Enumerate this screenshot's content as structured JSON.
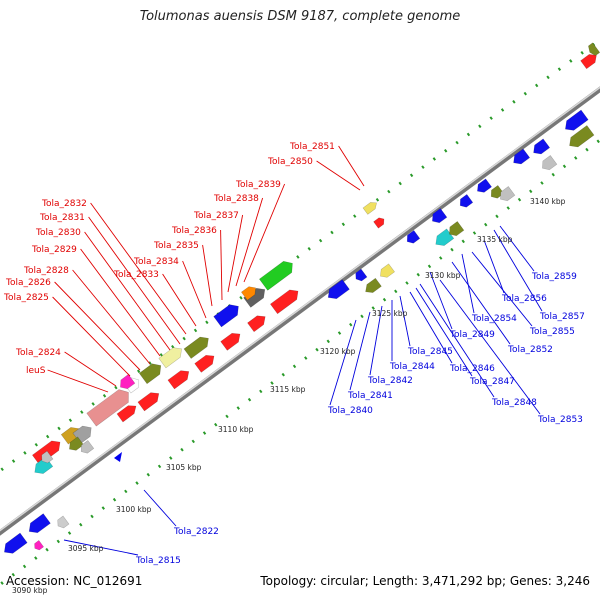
{
  "title": "Tolumonas auensis DSM 9187, complete genome",
  "footer": {
    "accession": "Accession: NC_012691",
    "summary": "Topology: circular; Length: 3,471,292 bp; Genes: 3,246"
  },
  "colors": {
    "forward_label": "#e00000",
    "reverse_label": "#0000dd",
    "backbone": "#909090",
    "dots": "#2a9a2a"
  },
  "scale_ticks": [
    "3090 kbp",
    "3095 kbp",
    "3100 kbp",
    "3105 kbp",
    "3110 kbp",
    "3115 kbp",
    "3120 kbp",
    "3125 kbp",
    "3130 kbp",
    "3135 kbp",
    "3140 kbp"
  ],
  "labels_forward": [
    "leuS",
    "Tola_2824",
    "Tola_2825",
    "Tola_2826",
    "Tola_2828",
    "Tola_2829",
    "Tola_2830",
    "Tola_2831",
    "Tola_2832",
    "Tola_2833",
    "Tola_2834",
    "Tola_2835",
    "Tola_2836",
    "Tola_2837",
    "Tola_2838",
    "Tola_2839",
    "Tola_2850",
    "Tola_2851"
  ],
  "labels_reverse": [
    "Tola_2815",
    "Tola_2822",
    "Tola_2840",
    "Tola_2841",
    "Tola_2842",
    "Tola_2844",
    "Tola_2845",
    "Tola_2846",
    "Tola_2847",
    "Tola_2848",
    "Tola_2849",
    "Tola_2852",
    "Tola_2853",
    "Tola_2854",
    "Tola_2855",
    "Tola_2856",
    "Tola_2857",
    "Tola_2859"
  ]
}
